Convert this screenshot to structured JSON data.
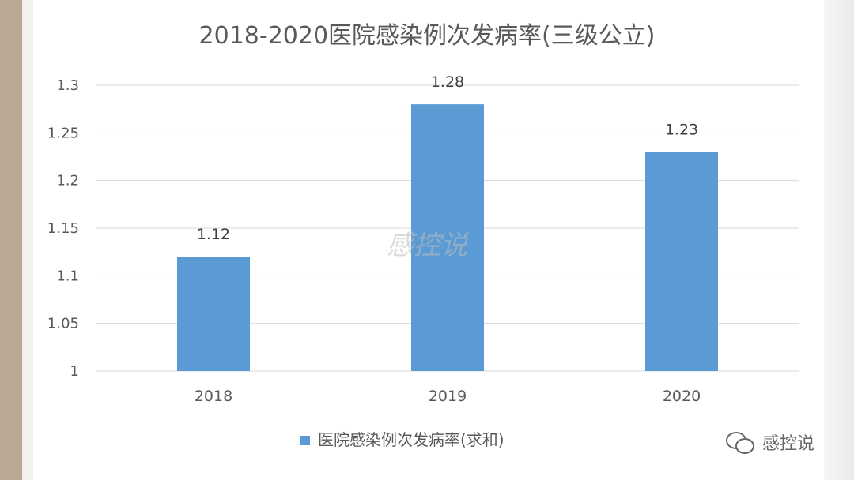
{
  "chart_data": {
    "type": "bar",
    "title": "2018-2020医院感染例次发病率(三级公立)",
    "categories": [
      "2018",
      "2019",
      "2020"
    ],
    "series": [
      {
        "name": "医院感染例次发病率(求和)",
        "values": [
          1.12,
          1.28,
          1.23
        ],
        "data_labels": [
          "1.12",
          "1.28",
          "1.23"
        ],
        "color": "#5b9bd5"
      }
    ],
    "ylim": [
      1,
      1.3
    ],
    "yticks": [
      "1",
      "1.05",
      "1.1",
      "1.15",
      "1.2",
      "1.25",
      "1.3"
    ],
    "grid": true,
    "legend_position": "bottom"
  },
  "watermark": {
    "center_text": "感控说",
    "brand_text": "感控说",
    "brand_icon": "wechat-icon"
  },
  "colors": {
    "bar": "#5b9bd5",
    "grid": "#d9d9d9",
    "text": "#595959"
  }
}
